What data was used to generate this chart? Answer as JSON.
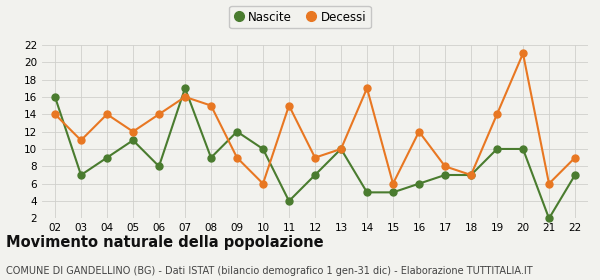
{
  "years": [
    "02",
    "03",
    "04",
    "05",
    "06",
    "07",
    "08",
    "09",
    "10",
    "11",
    "12",
    "13",
    "14",
    "15",
    "16",
    "17",
    "18",
    "19",
    "20",
    "21",
    "22"
  ],
  "nascite": [
    16,
    7,
    9,
    11,
    8,
    17,
    9,
    12,
    10,
    4,
    7,
    10,
    5,
    5,
    6,
    7,
    7,
    10,
    10,
    2,
    7
  ],
  "decessi": [
    14,
    11,
    14,
    12,
    14,
    16,
    15,
    9,
    6,
    15,
    9,
    10,
    17,
    6,
    12,
    8,
    7,
    14,
    21,
    6,
    9
  ],
  "nascite_color": "#4a7c2f",
  "decessi_color": "#e87722",
  "background_color": "#f2f2ee",
  "grid_color": "#d0d0cc",
  "ylim": [
    2,
    22
  ],
  "yticks": [
    2,
    4,
    6,
    8,
    10,
    12,
    14,
    16,
    18,
    20,
    22
  ],
  "title": "Movimento naturale della popolazione",
  "subtitle": "COMUNE DI GANDELLINO (BG) - Dati ISTAT (bilancio demografico 1 gen-31 dic) - Elaborazione TUTTITALIA.IT",
  "legend_nascite": "Nascite",
  "legend_decessi": "Decessi",
  "title_fontsize": 10.5,
  "subtitle_fontsize": 7,
  "marker_size": 5,
  "line_width": 1.5
}
